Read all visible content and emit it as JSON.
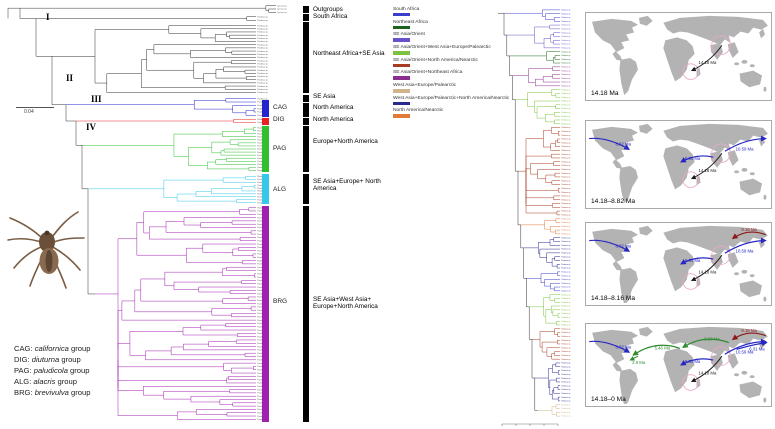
{
  "left": {
    "node_labels": [
      "I",
      "II",
      "III",
      "IV"
    ],
    "scale_label": "0.04",
    "outgroup_tip_label": "Lycosa sp.",
    "tip_label": "Pardosa sp.",
    "clade_bars": [
      {
        "label": "CAG",
        "color": "#2525cd"
      },
      {
        "label": "DIG",
        "color": "#e82222"
      },
      {
        "label": "PAG",
        "color": "#2fbf2f"
      },
      {
        "label": "ALG",
        "color": "#35c8e8"
      },
      {
        "label": "BRG",
        "color": "#a020b0"
      }
    ],
    "region_bars": [
      {
        "label": "Outgroups"
      },
      {
        "label": "South Africa"
      },
      {
        "label": "Northeast Africa+SE Asia"
      },
      {
        "label": "SE Asia"
      },
      {
        "label": "North America"
      },
      {
        "label": "North America"
      },
      {
        "label": "Europe+North America"
      },
      {
        "label": "SE Asia+Europe+ North America"
      },
      {
        "label": "SE Asia+West Asia+ Europe+North America"
      }
    ],
    "group_legend": [
      {
        "abbr": "CAG:",
        "species": "californica",
        "suffix": " group"
      },
      {
        "abbr": "DIG:",
        "species": "diuturna",
        "suffix": " group"
      },
      {
        "abbr": "PAG:",
        "species": "paludicola",
        "suffix": " group"
      },
      {
        "abbr": "ALG:",
        "species": "alacris",
        "suffix": " group"
      },
      {
        "abbr": "BRG:",
        "species": "brevivulva",
        "suffix": " group"
      }
    ]
  },
  "region_legend": [
    {
      "label": "South Africa",
      "color": "#3c3ccd"
    },
    {
      "label": "Northeast Africa",
      "color": "#1e641e"
    },
    {
      "label": "SE Asia/Orient",
      "color": "#6a51c8"
    },
    {
      "label": "SE Asia/Orient+West Asia+Europe/Palearctic",
      "color": "#7dc23e"
    },
    {
      "label": "SE Asia/Orient+North America/Nearctic",
      "color": "#a63d21"
    },
    {
      "label": "SE Asia/Orient+Northeast Africa",
      "color": "#8b2f8f"
    },
    {
      "label": "West Asia+Europe/Palearctic",
      "color": "#d2b48c"
    },
    {
      "label": "West Asia+Europe/Palearctic+North America/Nearctic",
      "color": "#2b2b8f"
    },
    {
      "label": "North America/Nearctic",
      "color": "#e07b39"
    }
  ],
  "right_tree": {
    "tip_label": "Pardosa sp.",
    "segments": [
      {
        "color": "#3c3ccd",
        "tips": 4
      },
      {
        "color": "#6a51c8",
        "tips": 7
      },
      {
        "color": "#1e641e",
        "tips": 4
      },
      {
        "color": "#8b2f8f",
        "tips": 6
      },
      {
        "color": "#7dc23e",
        "tips": 10
      },
      {
        "color": "#a63d21",
        "tips": 24
      },
      {
        "color": "#e07b39",
        "tips": 5
      },
      {
        "color": "#2b2b8f",
        "tips": 9
      },
      {
        "color": "#3c3ccd",
        "tips": 6
      },
      {
        "color": "#7dc23e",
        "tips": 9
      },
      {
        "color": "#a63d21",
        "tips": 9
      },
      {
        "color": "#2b2b8f",
        "tips": 11
      },
      {
        "color": "#d2b48c",
        "tips": 4
      }
    ]
  },
  "arrows": {
    "a1418": {
      "label": "14.18 Ma",
      "color": "#1a1a1a"
    },
    "a964": {
      "label": "9.64 Ma",
      "color": "#2626c4"
    },
    "a1059": {
      "label": "10.59 Ma",
      "color": "#2626c4"
    },
    "a882": {
      "label": "8.82 Ma",
      "color": "#2626c4"
    },
    "a816": {
      "label": "8.16 Ma",
      "color": "#8b1a1a"
    },
    "a631": {
      "label": "6.31 Ma",
      "color": "#2626c4"
    },
    "a546": {
      "label": "5.46 Ma",
      "color": "#2f8b2f"
    },
    "a528": {
      "label": "5.28 Ma",
      "color": "#2f8b2f"
    },
    "a29": {
      "label": "2.9 Ma",
      "color": "#2f8b2f"
    }
  },
  "maps": [
    {
      "caption": "14.18 Ma",
      "arrow_ids": [
        "a1418"
      ]
    },
    {
      "caption": "14.18–8.82 Ma",
      "arrow_ids": [
        "a1418",
        "a964",
        "a1059",
        "a882"
      ]
    },
    {
      "caption": "14.18–8.16 Ma",
      "arrow_ids": [
        "a1418",
        "a964",
        "a1059",
        "a882",
        "a816"
      ]
    },
    {
      "caption": "14.18–0 Ma",
      "arrow_ids": [
        "a1418",
        "a964",
        "a1059",
        "a882",
        "a816",
        "a631",
        "a546",
        "a528",
        "a29"
      ]
    }
  ]
}
